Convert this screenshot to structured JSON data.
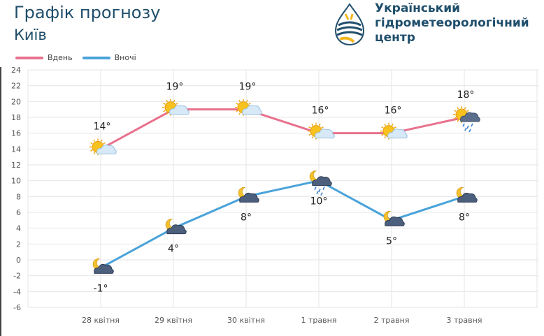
{
  "header": {
    "title": "Графік прогнозу",
    "city": "Київ",
    "org_lines": [
      "Український",
      "гідрометеорологічний",
      "центр"
    ]
  },
  "colors": {
    "day": "#e8718d",
    "night": "#4aa3d9",
    "title": "#1f4e6b",
    "grid": "#e6e6e6"
  },
  "chart_data": {
    "type": "line",
    "categories": [
      "28 квітня",
      "29 квітня",
      "30 квітня",
      "1 травня",
      "2 травня",
      "3 травня"
    ],
    "ylim": [
      -6,
      24
    ],
    "yticks": [
      -6,
      -4,
      -2,
      0,
      2,
      4,
      6,
      8,
      10,
      12,
      14,
      16,
      18,
      20,
      22,
      24
    ],
    "grid": true,
    "legend_position": "top-left",
    "series": [
      {
        "name": "Вдень",
        "color": "#e8718d",
        "values": [
          14,
          19,
          19,
          16,
          16,
          18
        ],
        "labels": [
          "14°",
          "19°",
          "19°",
          "16°",
          "16°",
          "18°"
        ],
        "icons": [
          "sun-cloud-icon",
          "sun-cloud-icon",
          "sun-cloud-icon",
          "sun-cloud-icon",
          "sun-cloud-icon",
          "sun-rain-cloud-icon"
        ]
      },
      {
        "name": "Вночі",
        "color": "#4aa3d9",
        "values": [
          -1,
          4,
          8,
          10,
          5,
          8
        ],
        "labels": [
          "-1°",
          "4°",
          "8°",
          "10°",
          "5°",
          "8°"
        ],
        "icons": [
          "moon-cloud-icon",
          "moon-cloud-icon",
          "moon-cloud-icon",
          "moon-rain-cloud-icon",
          "moon-cloud-icon",
          "moon-cloud-icon"
        ]
      }
    ]
  }
}
